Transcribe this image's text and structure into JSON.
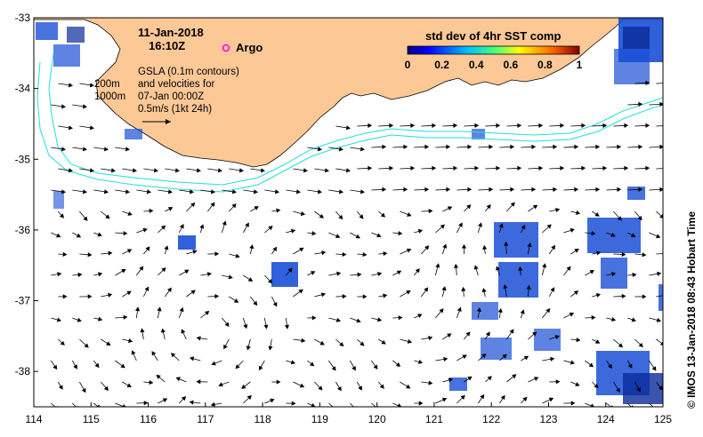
{
  "map": {
    "lon_range": [
      114,
      125
    ],
    "lat_range": [
      -38.5,
      -33
    ],
    "x_ticks": [
      "114",
      "115",
      "116",
      "117",
      "118",
      "119",
      "120",
      "121",
      "122",
      "123",
      "124",
      "125"
    ],
    "y_ticks": [
      "-33",
      "-34",
      "-35",
      "-36",
      "-37",
      "-38"
    ],
    "date": "11-Jan-2018",
    "time": "16:10Z",
    "argo_label": "Argo",
    "gsla_lines": [
      "GSLA (0.1m contours)",
      "and velocities for",
      "07-Jan 00:00Z",
      "0.5m/s (1kt 24h)"
    ],
    "depth_labels": [
      "200m",
      "1000m"
    ],
    "credit": "© IMOS 13-Jan-2018 08:43 Hobart Time",
    "colorbar": {
      "title": "std dev of 4hr SST comp",
      "ticks": [
        "0",
        "0.2",
        "0.4",
        "0.6",
        "0.8",
        "1"
      ]
    },
    "colors": {
      "land": "#fcc896",
      "isobath": "#22dddd",
      "argo": "#ff00ff",
      "data_blue": "#1a4fd6",
      "data_dark": "#0a2a9a"
    }
  }
}
